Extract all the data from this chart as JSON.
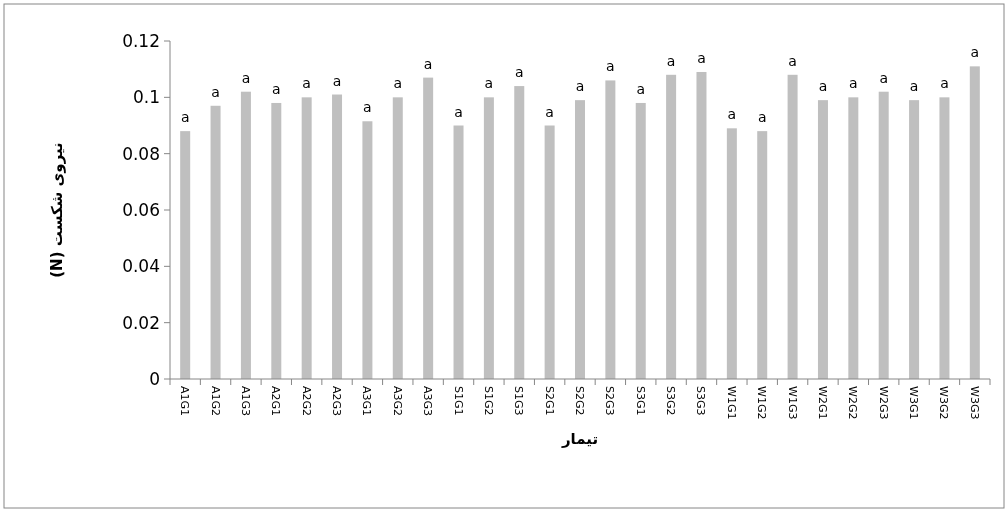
{
  "chart_data": {
    "type": "bar",
    "xlabel": "تیمار",
    "ylabel": "نیروی شکست (N)",
    "categories": [
      "A1G1",
      "A1G2",
      "A1G3",
      "A2G1",
      "A2G2",
      "A2G3",
      "A3G1",
      "A3G2",
      "A3G3",
      "S1G1",
      "S1G2",
      "S1G3",
      "S2G1",
      "S2G2",
      "S2G3",
      "S3G1",
      "S3G2",
      "S3G3",
      "W1G1",
      "W1G2",
      "W1G3",
      "W2G1",
      "W2G2",
      "W2G3",
      "W3G1",
      "W3G2",
      "W3G3"
    ],
    "values": [
      0.088,
      0.097,
      0.102,
      0.098,
      0.1,
      0.101,
      0.0915,
      0.1,
      0.107,
      0.09,
      0.1,
      0.104,
      0.09,
      0.099,
      0.106,
      0.098,
      0.108,
      0.109,
      0.089,
      0.088,
      0.108,
      0.099,
      0.1,
      0.102,
      0.099,
      0.1,
      0.111
    ],
    "value_labels": [
      "a",
      "a",
      "a",
      "a",
      "a",
      "a",
      "a",
      "a",
      "a",
      "a",
      "a",
      "a",
      "a",
      "a",
      "a",
      "a",
      "a",
      "a",
      "a",
      "a",
      "a",
      "a",
      "a",
      "a",
      "a",
      "a",
      "a"
    ],
    "color": "#bfbfbf",
    "ylim": [
      0,
      0.12
    ],
    "yticks": [
      0,
      0.02,
      0.04,
      0.06,
      0.08,
      0.1,
      0.12
    ]
  }
}
